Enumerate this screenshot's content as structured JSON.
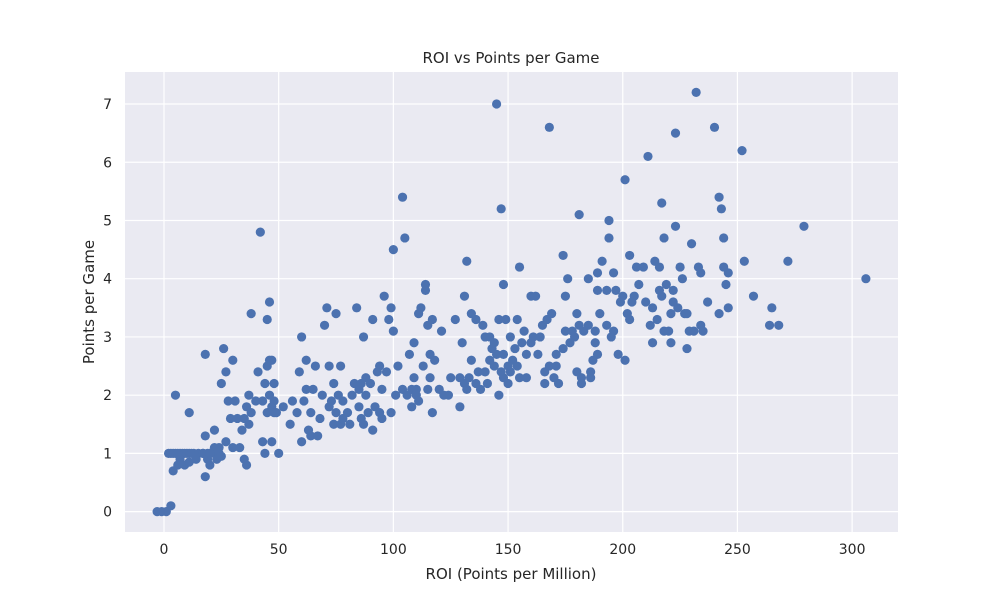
{
  "colors": {
    "point": "#4c72b0",
    "plot_bg": "#eaeaf2",
    "grid": "#ffffff",
    "text": "#262626"
  },
  "chart_data": {
    "type": "scatter",
    "title": "ROI vs Points per Game",
    "xlabel": "ROI (Points per Million)",
    "ylabel": "Points per Game",
    "xlim": [
      -17,
      320
    ],
    "ylim": [
      -0.35,
      7.55
    ],
    "xticks": [
      0,
      50,
      100,
      150,
      200,
      250,
      300
    ],
    "yticks": [
      0,
      1,
      2,
      3,
      4,
      5,
      6,
      7
    ],
    "grid": true,
    "legend": "none",
    "points": [
      [
        -3,
        0
      ],
      [
        -1,
        0
      ],
      [
        1,
        0
      ],
      [
        3,
        0.1
      ],
      [
        2,
        1
      ],
      [
        3,
        1
      ],
      [
        4,
        1
      ],
      [
        5,
        1
      ],
      [
        6,
        1
      ],
      [
        7,
        1
      ],
      [
        8,
        1
      ],
      [
        9,
        1
      ],
      [
        10,
        1
      ],
      [
        11,
        1
      ],
      [
        12,
        1
      ],
      [
        13,
        1
      ],
      [
        15,
        1
      ],
      [
        17,
        1
      ],
      [
        19,
        1
      ],
      [
        20,
        1
      ],
      [
        22,
        1
      ],
      [
        24,
        1
      ],
      [
        4,
        0.7
      ],
      [
        6,
        0.8
      ],
      [
        7,
        0.9
      ],
      [
        9,
        0.8
      ],
      [
        11,
        0.85
      ],
      [
        14,
        0.9
      ],
      [
        5,
        2.0
      ],
      [
        11,
        1.7
      ],
      [
        17,
        1.0
      ],
      [
        18,
        0.6
      ],
      [
        18,
        1.3
      ],
      [
        19,
        0.9
      ],
      [
        20,
        0.8
      ],
      [
        22,
        1.1
      ],
      [
        23,
        0.9
      ],
      [
        25,
        0.95
      ],
      [
        27,
        1.2
      ],
      [
        18,
        2.7
      ],
      [
        20,
        1.0
      ],
      [
        22,
        1.4
      ],
      [
        24,
        1.1
      ],
      [
        25,
        2.2
      ],
      [
        26,
        2.8
      ],
      [
        27,
        2.4
      ],
      [
        28,
        1.9
      ],
      [
        29,
        1.6
      ],
      [
        30,
        2.6
      ],
      [
        30,
        1.1
      ],
      [
        31,
        1.9
      ],
      [
        32,
        1.6
      ],
      [
        33,
        1.1
      ],
      [
        34,
        1.4
      ],
      [
        35,
        0.9
      ],
      [
        35,
        1.6
      ],
      [
        36,
        1.8
      ],
      [
        36,
        0.8
      ],
      [
        37,
        1.5
      ],
      [
        37,
        2.0
      ],
      [
        38,
        1.7
      ],
      [
        38,
        3.4
      ],
      [
        40,
        1.9
      ],
      [
        41,
        2.4
      ],
      [
        42,
        4.8
      ],
      [
        43,
        1.2
      ],
      [
        43,
        1.9
      ],
      [
        44,
        2.2
      ],
      [
        44,
        1.0
      ],
      [
        45,
        1.7
      ],
      [
        45,
        2.5
      ],
      [
        45,
        3.3
      ],
      [
        46,
        3.6
      ],
      [
        46,
        2.6
      ],
      [
        46,
        2.0
      ],
      [
        47,
        1.8
      ],
      [
        47,
        1.2
      ],
      [
        47,
        2.6
      ],
      [
        48,
        1.7
      ],
      [
        48,
        1.9
      ],
      [
        48,
        2.2
      ],
      [
        49,
        1.7
      ],
      [
        50,
        1.0
      ],
      [
        52,
        1.8
      ],
      [
        55,
        1.5
      ],
      [
        56,
        1.9
      ],
      [
        58,
        1.7
      ],
      [
        59,
        2.4
      ],
      [
        60,
        1.2
      ],
      [
        60,
        3.0
      ],
      [
        61,
        1.9
      ],
      [
        62,
        2.1
      ],
      [
        62,
        2.6
      ],
      [
        63,
        1.4
      ],
      [
        64,
        1.7
      ],
      [
        64,
        1.3
      ],
      [
        65,
        2.1
      ],
      [
        66,
        2.5
      ],
      [
        67,
        1.3
      ],
      [
        68,
        1.6
      ],
      [
        69,
        2.0
      ],
      [
        70,
        3.2
      ],
      [
        71,
        3.5
      ],
      [
        72,
        1.8
      ],
      [
        72,
        2.5
      ],
      [
        73,
        1.9
      ],
      [
        74,
        1.5
      ],
      [
        74,
        2.2
      ],
      [
        75,
        3.4
      ],
      [
        75,
        1.7
      ],
      [
        76,
        2.0
      ],
      [
        77,
        2.5
      ],
      [
        77,
        1.5
      ],
      [
        78,
        1.6
      ],
      [
        78,
        1.9
      ],
      [
        80,
        1.7
      ],
      [
        81,
        1.5
      ],
      [
        82,
        2.0
      ],
      [
        83,
        2.2
      ],
      [
        84,
        3.5
      ],
      [
        85,
        1.8
      ],
      [
        85,
        2.1
      ],
      [
        86,
        1.6
      ],
      [
        86,
        2.2
      ],
      [
        87,
        1.5
      ],
      [
        87,
        3.0
      ],
      [
        88,
        2.0
      ],
      [
        88,
        2.3
      ],
      [
        89,
        1.7
      ],
      [
        90,
        2.2
      ],
      [
        91,
        1.4
      ],
      [
        91,
        3.3
      ],
      [
        92,
        1.8
      ],
      [
        93,
        2.4
      ],
      [
        94,
        2.5
      ],
      [
        94,
        1.7
      ],
      [
        95,
        2.1
      ],
      [
        95,
        1.6
      ],
      [
        96,
        3.7
      ],
      [
        97,
        2.4
      ],
      [
        98,
        3.3
      ],
      [
        99,
        1.7
      ],
      [
        99,
        3.5
      ],
      [
        100,
        4.5
      ],
      [
        100,
        3.1
      ],
      [
        101,
        2.0
      ],
      [
        102,
        2.5
      ],
      [
        104,
        5.4
      ],
      [
        104,
        2.1
      ],
      [
        105,
        4.7
      ],
      [
        106,
        2.0
      ],
      [
        107,
        2.7
      ],
      [
        108,
        2.1
      ],
      [
        108,
        1.8
      ],
      [
        109,
        2.3
      ],
      [
        109,
        2.9
      ],
      [
        110,
        2.0
      ],
      [
        110,
        2.1
      ],
      [
        111,
        3.4
      ],
      [
        111,
        1.9
      ],
      [
        112,
        3.5
      ],
      [
        113,
        2.5
      ],
      [
        114,
        3.9
      ],
      [
        114,
        3.8
      ],
      [
        115,
        2.1
      ],
      [
        115,
        3.2
      ],
      [
        116,
        2.7
      ],
      [
        116,
        2.3
      ],
      [
        117,
        3.3
      ],
      [
        117,
        1.7
      ],
      [
        118,
        2.6
      ],
      [
        120,
        2.1
      ],
      [
        121,
        3.1
      ],
      [
        122,
        2.0
      ],
      [
        124,
        2.0
      ],
      [
        125,
        2.3
      ],
      [
        127,
        3.3
      ],
      [
        129,
        2.3
      ],
      [
        129,
        1.8
      ],
      [
        130,
        2.9
      ],
      [
        131,
        2.2
      ],
      [
        131,
        3.7
      ],
      [
        132,
        2.1
      ],
      [
        132,
        4.3
      ],
      [
        133,
        2.3
      ],
      [
        134,
        3.4
      ],
      [
        134,
        2.6
      ],
      [
        136,
        2.2
      ],
      [
        136,
        3.3
      ],
      [
        137,
        2.4
      ],
      [
        138,
        2.1
      ],
      [
        139,
        3.2
      ],
      [
        140,
        2.4
      ],
      [
        140,
        3.0
      ],
      [
        141,
        2.2
      ],
      [
        142,
        3.0
      ],
      [
        142,
        2.6
      ],
      [
        143,
        2.8
      ],
      [
        144,
        2.9
      ],
      [
        144,
        2.5
      ],
      [
        145,
        7.0
      ],
      [
        145,
        2.7
      ],
      [
        146,
        3.3
      ],
      [
        146,
        2.0
      ],
      [
        147,
        5.2
      ],
      [
        147,
        2.4
      ],
      [
        148,
        2.3
      ],
      [
        148,
        2.7
      ],
      [
        148,
        3.9
      ],
      [
        149,
        3.3
      ],
      [
        150,
        2.2
      ],
      [
        150,
        2.5
      ],
      [
        151,
        3.0
      ],
      [
        151,
        2.4
      ],
      [
        152,
        2.6
      ],
      [
        153,
        2.8
      ],
      [
        154,
        2.5
      ],
      [
        154,
        3.3
      ],
      [
        155,
        4.2
      ],
      [
        155,
        2.3
      ],
      [
        156,
        2.9
      ],
      [
        157,
        3.1
      ],
      [
        158,
        2.7
      ],
      [
        158,
        2.3
      ],
      [
        160,
        2.9
      ],
      [
        160,
        3.7
      ],
      [
        161,
        3.0
      ],
      [
        162,
        3.7
      ],
      [
        163,
        2.7
      ],
      [
        164,
        3.0
      ],
      [
        165,
        3.2
      ],
      [
        166,
        2.4
      ],
      [
        166,
        2.2
      ],
      [
        167,
        3.3
      ],
      [
        168,
        6.6
      ],
      [
        168,
        2.5
      ],
      [
        169,
        3.4
      ],
      [
        170,
        2.3
      ],
      [
        171,
        2.5
      ],
      [
        171,
        2.7
      ],
      [
        172,
        2.2
      ],
      [
        174,
        2.8
      ],
      [
        174,
        4.4
      ],
      [
        175,
        3.1
      ],
      [
        175,
        3.7
      ],
      [
        176,
        4.0
      ],
      [
        177,
        2.9
      ],
      [
        178,
        3.1
      ],
      [
        179,
        3.0
      ],
      [
        180,
        2.4
      ],
      [
        180,
        3.4
      ],
      [
        181,
        5.1
      ],
      [
        181,
        3.2
      ],
      [
        182,
        2.3
      ],
      [
        182,
        2.2
      ],
      [
        183,
        3.1
      ],
      [
        185,
        3.2
      ],
      [
        185,
        4.0
      ],
      [
        186,
        2.3
      ],
      [
        186,
        2.4
      ],
      [
        187,
        2.6
      ],
      [
        188,
        3.1
      ],
      [
        188,
        2.9
      ],
      [
        189,
        2.7
      ],
      [
        189,
        4.1
      ],
      [
        189,
        3.8
      ],
      [
        190,
        3.4
      ],
      [
        191,
        4.3
      ],
      [
        193,
        3.8
      ],
      [
        193,
        3.2
      ],
      [
        194,
        5.0
      ],
      [
        194,
        4.7
      ],
      [
        195,
        3.0
      ],
      [
        196,
        3.1
      ],
      [
        196,
        4.1
      ],
      [
        197,
        3.8
      ],
      [
        198,
        2.7
      ],
      [
        199,
        3.6
      ],
      [
        200,
        3.7
      ],
      [
        201,
        2.6
      ],
      [
        201,
        5.7
      ],
      [
        202,
        3.4
      ],
      [
        203,
        3.3
      ],
      [
        203,
        4.4
      ],
      [
        204,
        3.6
      ],
      [
        205,
        3.7
      ],
      [
        206,
        4.2
      ],
      [
        207,
        3.9
      ],
      [
        209,
        4.2
      ],
      [
        210,
        3.6
      ],
      [
        211,
        6.1
      ],
      [
        212,
        3.2
      ],
      [
        213,
        3.5
      ],
      [
        213,
        2.9
      ],
      [
        214,
        4.3
      ],
      [
        215,
        3.3
      ],
      [
        216,
        3.8
      ],
      [
        216,
        4.2
      ],
      [
        217,
        5.3
      ],
      [
        217,
        3.7
      ],
      [
        218,
        4.7
      ],
      [
        218,
        3.1
      ],
      [
        219,
        3.9
      ],
      [
        220,
        3.1
      ],
      [
        221,
        3.4
      ],
      [
        221,
        2.9
      ],
      [
        222,
        3.8
      ],
      [
        222,
        3.6
      ],
      [
        223,
        4.9
      ],
      [
        223,
        6.5
      ],
      [
        224,
        3.5
      ],
      [
        225,
        4.2
      ],
      [
        226,
        4.0
      ],
      [
        227,
        3.4
      ],
      [
        228,
        3.4
      ],
      [
        228,
        2.8
      ],
      [
        229,
        3.1
      ],
      [
        230,
        4.6
      ],
      [
        231,
        3.1
      ],
      [
        232,
        7.2
      ],
      [
        233,
        4.2
      ],
      [
        234,
        4.1
      ],
      [
        234,
        3.2
      ],
      [
        235,
        3.1
      ],
      [
        237,
        3.6
      ],
      [
        240,
        6.6
      ],
      [
        242,
        5.4
      ],
      [
        242,
        3.4
      ],
      [
        243,
        5.2
      ],
      [
        244,
        4.2
      ],
      [
        244,
        4.7
      ],
      [
        245,
        3.9
      ],
      [
        246,
        3.5
      ],
      [
        246,
        4.1
      ],
      [
        252,
        6.2
      ],
      [
        253,
        4.3
      ],
      [
        257,
        3.7
      ],
      [
        264,
        3.2
      ],
      [
        265,
        3.5
      ],
      [
        268,
        3.2
      ],
      [
        272,
        4.3
      ],
      [
        279,
        4.9
      ],
      [
        306,
        4.0
      ]
    ]
  }
}
